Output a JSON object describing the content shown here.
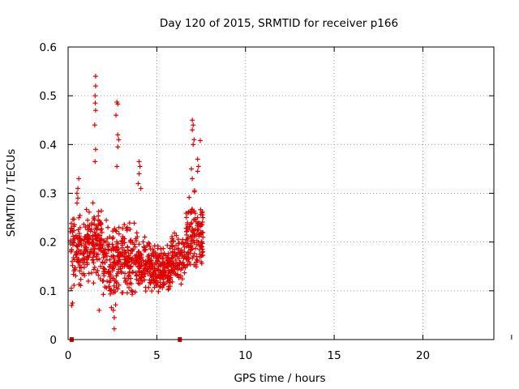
{
  "chart_data": {
    "type": "scatter",
    "title": "Day 120 of 2015, SRMTID for receiver p166",
    "xlabel": "GPS time / hours",
    "ylabel": "SRMTID / TECUs",
    "xlim": [
      0,
      24
    ],
    "ylim": [
      0,
      0.6
    ],
    "xticks": [
      "0",
      "5",
      "10",
      "15",
      "20"
    ],
    "yticks": [
      "0",
      "0.1",
      "0.2",
      "0.3",
      "0.4",
      "0.5",
      "0.6"
    ],
    "grid": true,
    "marker": "+",
    "color": "#e00000",
    "square_markers": [
      [
        0.2,
        0.0
      ],
      [
        6.3,
        0.0
      ]
    ],
    "spikes": [
      [
        1.55,
        0.54
      ],
      [
        1.55,
        0.52
      ],
      [
        1.52,
        0.5
      ],
      [
        1.53,
        0.485
      ],
      [
        1.55,
        0.47
      ],
      [
        1.5,
        0.44
      ],
      [
        2.75,
        0.487
      ],
      [
        2.8,
        0.483
      ],
      [
        2.7,
        0.46
      ],
      [
        2.8,
        0.42
      ],
      [
        2.85,
        0.41
      ],
      [
        2.8,
        0.395
      ],
      [
        2.75,
        0.355
      ],
      [
        1.55,
        0.39
      ],
      [
        1.52,
        0.365
      ],
      [
        7.0,
        0.45
      ],
      [
        7.05,
        0.44
      ],
      [
        7.0,
        0.43
      ],
      [
        7.1,
        0.41
      ],
      [
        7.05,
        0.4
      ],
      [
        7.45,
        0.408
      ],
      [
        7.3,
        0.37
      ],
      [
        7.35,
        0.355
      ],
      [
        7.3,
        0.345
      ],
      [
        6.95,
        0.35
      ],
      [
        7.0,
        0.33
      ],
      [
        4.0,
        0.365
      ],
      [
        4.05,
        0.355
      ],
      [
        4.0,
        0.34
      ],
      [
        3.95,
        0.32
      ],
      [
        4.1,
        0.31
      ],
      [
        0.6,
        0.33
      ],
      [
        0.55,
        0.31
      ],
      [
        0.5,
        0.3
      ],
      [
        0.55,
        0.29
      ],
      [
        0.5,
        0.28
      ],
      [
        2.6,
        0.022
      ],
      [
        2.6,
        0.045
      ],
      [
        2.55,
        0.06
      ],
      [
        1.75,
        0.06
      ],
      [
        0.2,
        0.07
      ],
      [
        0.25,
        0.075
      ],
      [
        7.55,
        0.22
      ],
      [
        7.6,
        0.25
      ],
      [
        7.55,
        0.26
      ],
      [
        7.6,
        0.21
      ],
      [
        7.55,
        0.19
      ],
      [
        7.6,
        0.18
      ]
    ],
    "series_envelope": [
      {
        "x0": 0.1,
        "x1": 0.9,
        "lo": 0.08,
        "hi": 0.28,
        "n": 90
      },
      {
        "x0": 0.9,
        "x1": 1.9,
        "lo": 0.1,
        "hi": 0.3,
        "n": 140
      },
      {
        "x0": 1.9,
        "x1": 2.9,
        "lo": 0.05,
        "hi": 0.27,
        "n": 130
      },
      {
        "x0": 2.9,
        "x1": 3.9,
        "lo": 0.07,
        "hi": 0.26,
        "n": 120
      },
      {
        "x0": 3.9,
        "x1": 4.8,
        "lo": 0.08,
        "hi": 0.22,
        "n": 120
      },
      {
        "x0": 4.8,
        "x1": 5.8,
        "lo": 0.07,
        "hi": 0.21,
        "n": 150
      },
      {
        "x0": 5.8,
        "x1": 6.6,
        "lo": 0.09,
        "hi": 0.24,
        "n": 90
      },
      {
        "x0": 6.6,
        "x1": 7.6,
        "lo": 0.1,
        "hi": 0.32,
        "n": 130
      }
    ]
  }
}
